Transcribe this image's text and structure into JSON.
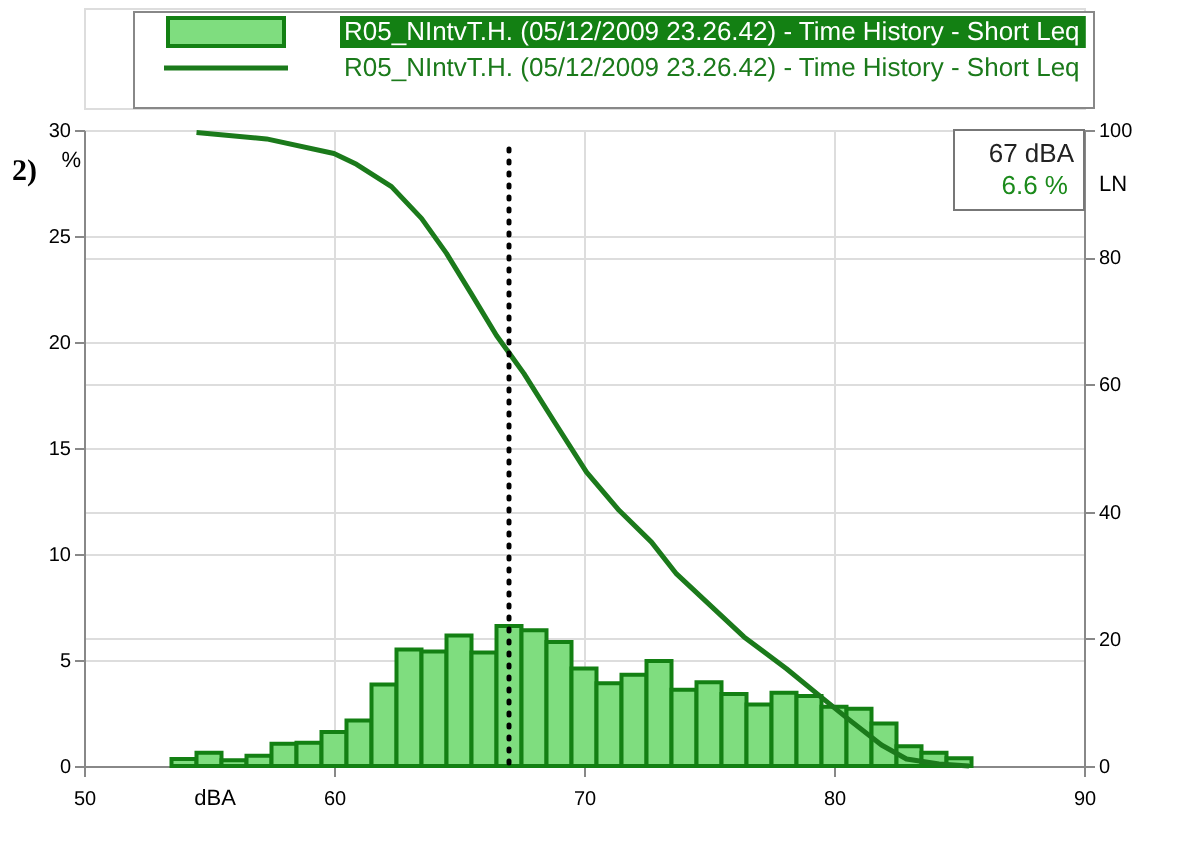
{
  "chart_data": {
    "type": "histogram",
    "xlabel": "dBA",
    "ylabel": "%",
    "y2label": "LN",
    "bins": [
      53.5,
      54.5,
      55.5,
      56.5,
      57.5,
      58.5,
      59.5,
      60.5,
      61.5,
      62.5,
      63.5,
      64.5,
      65.5,
      66.5,
      67.5,
      68.5,
      69.5,
      70.5,
      71.5,
      72.5,
      73.5,
      74.5,
      75.5,
      76.5,
      77.5,
      78.5,
      79.5,
      80.5,
      81.5,
      82.5,
      83.5,
      84.5,
      85.5
    ],
    "series": [
      {
        "name": "R05_NIntvT.H. (05/12/2009 23.26.42) - Time History - Short Leq",
        "color": "#7fdd7f",
        "values": [
          0.33,
          0.63,
          0.27,
          0.48,
          1.05,
          1.1,
          1.6,
          2.15,
          3.85,
          5.5,
          5.4,
          6.15,
          5.35,
          6.6,
          6.4,
          5.85,
          4.6,
          3.9,
          4.3,
          4.95,
          3.6,
          3.95,
          3.4,
          2.9,
          3.45,
          3.3,
          2.8,
          2.7,
          2.0,
          0.93,
          0.63,
          0.36
        ]
      },
      {
        "name": "R05_NIntvT.H. (05/12/2009 23.26.42) - Time History - Short Leq",
        "type": "line",
        "axis": "y2",
        "color": "#1b7a1b",
        "x": [
          54.5,
          57.3,
          60.0,
          60.9,
          62.3,
          63.5,
          64.5,
          65.5,
          66.5,
          67.6,
          68.8,
          70.1,
          71.4,
          72.7,
          73.7,
          76.4,
          78.1,
          79.5,
          80.6,
          81.9,
          82.9,
          84.2,
          85.4
        ],
        "values": [
          99.6,
          98.6,
          96.3,
          94.6,
          91.1,
          86.1,
          80.6,
          74.2,
          67.7,
          61.7,
          54.2,
          46.2,
          40.2,
          35.2,
          30.2,
          20.3,
          15.3,
          10.8,
          7.3,
          3.3,
          1.1,
          0.3,
          0
        ]
      }
    ],
    "xlim": [
      50,
      90
    ],
    "xticks": [
      50,
      60,
      70,
      80,
      90
    ],
    "ylim": [
      0,
      30
    ],
    "yticks": [
      0,
      5,
      10,
      15,
      20,
      25,
      30
    ],
    "y2lim": [
      0,
      100
    ],
    "y2ticks": [
      0,
      20,
      40,
      60,
      80,
      100
    ],
    "ref_lines": [
      {
        "axis": "x",
        "value": 67,
        "color": "#000000",
        "line_style": "dotted"
      }
    ],
    "annotations": [
      "67 dBA",
      "6.6 %",
      "2)"
    ],
    "grid": true,
    "legend": "top"
  }
}
